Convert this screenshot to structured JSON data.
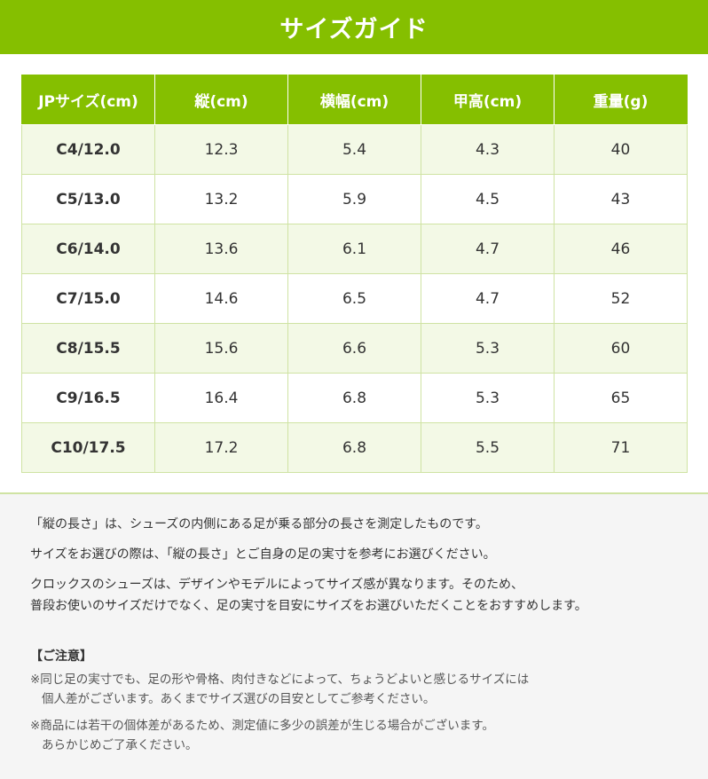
{
  "header": {
    "title": "サイズガイド"
  },
  "table": {
    "columns": [
      "JPサイズ(cm)",
      "縦(cm)",
      "横幅(cm)",
      "甲高(cm)",
      "重量(g)"
    ],
    "rows": [
      [
        "C4/12.0",
        "12.3",
        "5.4",
        "4.3",
        "40"
      ],
      [
        "C5/13.0",
        "13.2",
        "5.9",
        "4.5",
        "43"
      ],
      [
        "C6/14.0",
        "13.6",
        "6.1",
        "4.7",
        "46"
      ],
      [
        "C7/15.0",
        "14.6",
        "6.5",
        "4.7",
        "52"
      ],
      [
        "C8/15.5",
        "15.6",
        "6.6",
        "5.3",
        "60"
      ],
      [
        "C9/16.5",
        "16.4",
        "6.8",
        "5.3",
        "65"
      ],
      [
        "C10/17.5",
        "17.2",
        "6.8",
        "5.5",
        "71"
      ]
    ]
  },
  "notes": {
    "paragraphs": [
      [
        "「縦の長さ」は、シューズの内側にある足が乗る部分の長さを測定したものです。"
      ],
      [
        "サイズをお選びの際は、「縦の長さ」とご自身の足の実寸を参考にお選びください。"
      ],
      [
        "クロックスのシューズは、デザインやモデルによってサイズ感が異なります。そのため、",
        "普段お使いのサイズだけでなく、足の実寸を目安にサイズをお選びいただくことをおすすめします。"
      ]
    ],
    "caution_title": "【ご注意】",
    "cautions": [
      [
        "※同じ足の実寸でも、足の形や骨格、肉付きなどによって、ちょうどよいと感じるサイズには",
        "個人差がございます。あくまでサイズ選びの目安としてご参考ください。"
      ],
      [
        "※商品には若干の個体差があるため、測定値に多少の誤差が生じる場合がございます。",
        "あらかじめご了承ください。"
      ]
    ]
  }
}
